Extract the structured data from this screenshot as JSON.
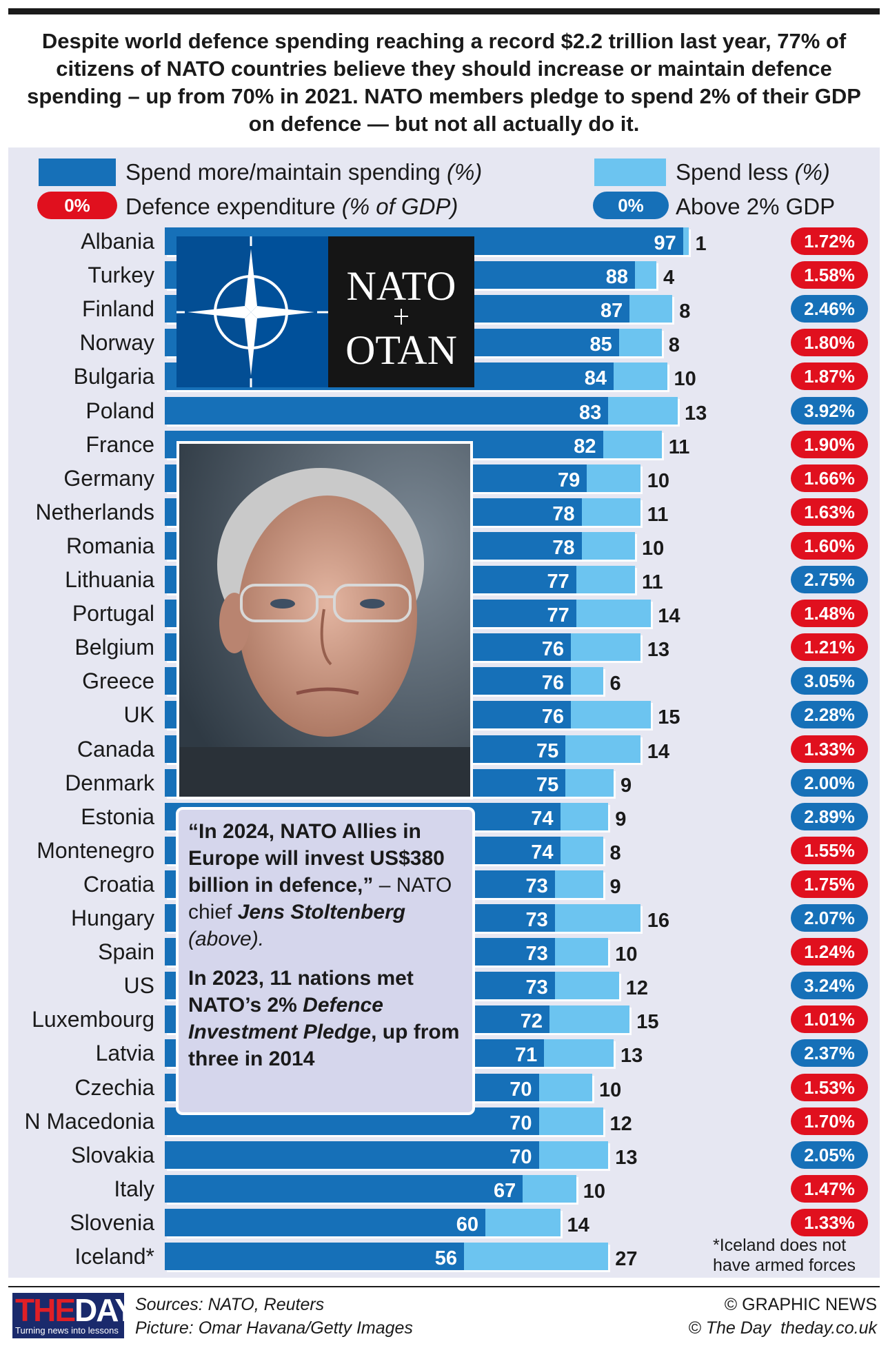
{
  "headline": "Despite world defence spending reaching a record $2.2 trillion last year, 77% of citizens of NATO countries believe they should increase or maintain defence spending – up from 70% in 2021. NATO members pledge to spend 2% of their GDP on defence — but not all actually do it.",
  "legend": {
    "more_label": "Spend more/maintain spending",
    "more_unit": "(%)",
    "less_label": "Spend less",
    "less_unit": "(%)",
    "gdp_sample": "0%",
    "gdp_label": "Defence expenditure",
    "gdp_unit": "(% of GDP)",
    "above_sample": "0%",
    "above_label": "Above 2% GDP"
  },
  "colors": {
    "more": "#1670b8",
    "less": "#6cc4f0",
    "below_2": "#e0101e",
    "above_2": "#1670b8",
    "panel": "#e6e7f2"
  },
  "chart_data": {
    "type": "bar",
    "orientation": "horizontal",
    "stacked": true,
    "categories": [
      "Albania",
      "Turkey",
      "Finland",
      "Norway",
      "Bulgaria",
      "Poland",
      "France",
      "Germany",
      "Netherlands",
      "Romania",
      "Lithuania",
      "Portugal",
      "Belgium",
      "Greece",
      "UK",
      "Canada",
      "Denmark",
      "Estonia",
      "Montenegro",
      "Croatia",
      "Hungary",
      "Spain",
      "US",
      "Luxembourg",
      "Latvia",
      "Czechia",
      "N Macedonia",
      "Slovakia",
      "Italy",
      "Slovenia",
      "Iceland*"
    ],
    "series": [
      {
        "name": "Spend more/maintain spending (%)",
        "values": [
          97,
          88,
          87,
          85,
          84,
          83,
          82,
          79,
          78,
          78,
          77,
          77,
          76,
          76,
          76,
          75,
          75,
          74,
          74,
          73,
          73,
          73,
          73,
          72,
          71,
          70,
          70,
          70,
          67,
          60,
          56
        ]
      },
      {
        "name": "Spend less (%)",
        "values": [
          1,
          4,
          8,
          8,
          10,
          13,
          11,
          10,
          11,
          10,
          11,
          14,
          13,
          6,
          15,
          14,
          9,
          9,
          8,
          9,
          16,
          10,
          12,
          15,
          13,
          10,
          12,
          13,
          10,
          14,
          27
        ]
      }
    ],
    "gdp_labels": [
      "1.72%",
      "1.58%",
      "2.46%",
      "1.80%",
      "1.87%",
      "3.92%",
      "1.90%",
      "1.66%",
      "1.63%",
      "1.60%",
      "2.75%",
      "1.48%",
      "1.21%",
      "3.05%",
      "2.28%",
      "1.33%",
      "2.00%",
      "2.89%",
      "1.55%",
      "1.75%",
      "2.07%",
      "1.24%",
      "3.24%",
      "1.01%",
      "2.37%",
      "1.53%",
      "1.70%",
      "2.05%",
      "1.47%",
      "1.33%",
      ""
    ],
    "gdp_above_2": [
      false,
      false,
      true,
      false,
      false,
      true,
      false,
      false,
      false,
      false,
      true,
      false,
      false,
      true,
      true,
      false,
      true,
      true,
      false,
      false,
      true,
      false,
      true,
      false,
      true,
      false,
      false,
      true,
      false,
      false,
      null
    ],
    "xlim": [
      0,
      100
    ]
  },
  "nato_logo": {
    "line1": "NATO",
    "line2": "OTAN"
  },
  "quote": {
    "q_bold": "“In 2024, NATO Allies in Europe will invest US$380 billion in defence,”",
    "q_plain": " – NATO chief ",
    "q_name": "Jens Stoltenberg",
    "q_above": "(above).",
    "p2_a": "In 2023, 11 nations met NATO’s 2% ",
    "p2_b": "Defence Investment Pledge",
    "p2_c": ", up from three in 2014"
  },
  "note": "*Iceland does not have armed forces",
  "footer": {
    "logo_a": "THE",
    "logo_b": "DAY",
    "tagline": "Turning news into lessons",
    "sources": "Sources: NATO, Reuters",
    "picture": "Picture: Omar Havana/Getty Images",
    "credit1": "© GRAPHIC NEWS",
    "credit2a": "© The Day",
    "credit2b": "theday.co.uk"
  }
}
